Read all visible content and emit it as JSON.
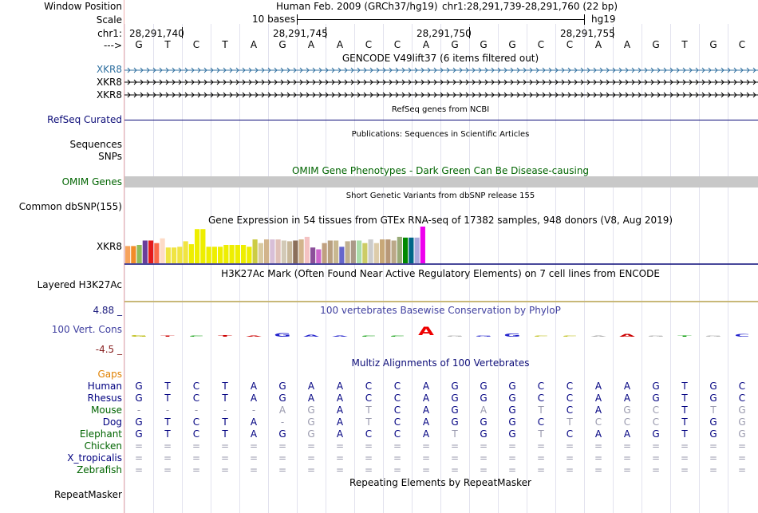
{
  "labels": {
    "window_position": "Window Position",
    "scale": "Scale",
    "chr": "chr1:",
    "arrow": "--->",
    "gencode_1": "XKR8",
    "gencode_2": "XKR8",
    "gencode_3": "XKR8",
    "refseq": "RefSeq Curated",
    "sequences": "Sequences",
    "snps": "SNPs",
    "omim": "OMIM Genes",
    "common_dbsnp": "Common dbSNP(155)",
    "gtex": "XKR8",
    "h3k27ac": "Layered H3K27Ac",
    "cons_max": "4.88 _",
    "cons": "100 Vert. Cons",
    "cons_min": "-4.5 _",
    "gaps": "Gaps",
    "repeatmasker": "RepeatMasker"
  },
  "header": {
    "assembly": "Human Feb. 2009 (GRCh37/hg19)",
    "position": "chr1:28,291,739-28,291,760 (22 bp)",
    "scale_text": "10 bases",
    "scale_db": "hg19",
    "ticks": [
      "28,291,740",
      "28,291,745",
      "28,291,750",
      "28,291,755"
    ]
  },
  "bases": [
    "G",
    "T",
    "C",
    "T",
    "A",
    "G",
    "A",
    "A",
    "C",
    "C",
    "A",
    "G",
    "G",
    "G",
    "C",
    "C",
    "A",
    "A",
    "G",
    "T",
    "G",
    "C"
  ],
  "titles": {
    "gencode": "GENCODE V49lift37 (6 items filtered out)",
    "refseq": "RefSeq genes from NCBI",
    "publications": "Publications: Sequences in Scientific Articles",
    "omim": "OMIM Gene Phenotypes - Dark Green Can Be Disease-causing",
    "snp155": "Short Genetic Variants from dbSNP release 155",
    "gtex": "Gene Expression in 54 tissues from GTEx RNA-seq of 17382 samples, 948 donors (V8, Aug 2019)",
    "h3k27ac": "H3K27Ac Mark (Often Found Near Active Regulatory Elements) on 7 cell lines from ENCODE",
    "phylop": "100 vertebrates Basewise Conservation by PhyloP",
    "multiz": "Multiz Alignments of 100 Vertebrates",
    "repeatmasker": "Repeating Elements by RepeatMasker"
  },
  "gtex_bars": [
    {
      "v": 0.47,
      "c": "#f7a35c"
    },
    {
      "v": 0.47,
      "c": "#f28c28"
    },
    {
      "v": 0.5,
      "c": "#8fbc5a"
    },
    {
      "v": 0.62,
      "c": "#6a3d9a"
    },
    {
      "v": 0.62,
      "c": "#e31a1c"
    },
    {
      "v": 0.55,
      "c": "#fb6a4a"
    },
    {
      "v": 0.68,
      "c": "#fddbc7"
    },
    {
      "v": 0.43,
      "c": "#f0e442"
    },
    {
      "v": 0.43,
      "c": "#f0e442"
    },
    {
      "v": 0.45,
      "c": "#f0e442"
    },
    {
      "v": 0.6,
      "c": "#f0e442"
    },
    {
      "v": 0.52,
      "c": "#eeee00"
    },
    {
      "v": 0.93,
      "c": "#eeee00"
    },
    {
      "v": 0.93,
      "c": "#eeee00"
    },
    {
      "v": 0.45,
      "c": "#eeee00"
    },
    {
      "v": 0.45,
      "c": "#eeee00"
    },
    {
      "v": 0.45,
      "c": "#eeee00"
    },
    {
      "v": 0.5,
      "c": "#eeee00"
    },
    {
      "v": 0.5,
      "c": "#eeee00"
    },
    {
      "v": 0.5,
      "c": "#eeee00"
    },
    {
      "v": 0.5,
      "c": "#eeee00"
    },
    {
      "v": 0.45,
      "c": "#eeee00"
    },
    {
      "v": 0.65,
      "c": "#cccc44"
    },
    {
      "v": 0.55,
      "c": "#d9c9a0"
    },
    {
      "v": 0.65,
      "c": "#d2b48c"
    },
    {
      "v": 0.65,
      "c": "#d8bfd8"
    },
    {
      "v": 0.65,
      "c": "#e0c0b8"
    },
    {
      "v": 0.62,
      "c": "#d2c9b6"
    },
    {
      "v": 0.6,
      "c": "#c8b89a"
    },
    {
      "v": 0.62,
      "c": "#8b6f5a"
    },
    {
      "v": 0.65,
      "c": "#d2b48c"
    },
    {
      "v": 0.72,
      "c": "#f4c2c2"
    },
    {
      "v": 0.43,
      "c": "#8b4f9a"
    },
    {
      "v": 0.38,
      "c": "#cc66cc"
    },
    {
      "v": 0.55,
      "c": "#c0a080"
    },
    {
      "v": 0.62,
      "c": "#b8a080"
    },
    {
      "v": 0.62,
      "c": "#c8b890"
    },
    {
      "v": 0.45,
      "c": "#6666cc"
    },
    {
      "v": 0.6,
      "c": "#c0b090"
    },
    {
      "v": 0.62,
      "c": "#aa9988"
    },
    {
      "v": 0.62,
      "c": "#aaddaa"
    },
    {
      "v": 0.55,
      "c": "#cccc66"
    },
    {
      "v": 0.65,
      "c": "#cccccc"
    },
    {
      "v": 0.55,
      "c": "#ddccaa"
    },
    {
      "v": 0.65,
      "c": "#c8a878"
    },
    {
      "v": 0.65,
      "c": "#b89878"
    },
    {
      "v": 0.62,
      "c": "#bba888"
    },
    {
      "v": 0.72,
      "c": "#99aa77"
    },
    {
      "v": 0.7,
      "c": "#008800"
    },
    {
      "v": 0.7,
      "c": "#006688"
    },
    {
      "v": 0.7,
      "c": "#aaaadd"
    },
    {
      "v": 1.0,
      "c": "#ee00ee"
    }
  ],
  "phylop_glyphs": [
    {
      "b": "G",
      "s": 0.3,
      "up": false,
      "c": "#b8b800"
    },
    {
      "b": "T",
      "s": 0.2,
      "up": false,
      "c": "#cc0000"
    },
    {
      "b": "C",
      "s": 0.2,
      "up": false,
      "c": "#009900"
    },
    {
      "b": "T",
      "s": 0.3,
      "up": false,
      "c": "#cc0000"
    },
    {
      "b": "A",
      "s": 0.15,
      "up": false,
      "c": "#cc0000"
    },
    {
      "b": "G",
      "s": 0.7,
      "up": false,
      "c": "#2222cc"
    },
    {
      "b": "A",
      "s": 0.4,
      "up": false,
      "c": "#2222cc"
    },
    {
      "b": "A",
      "s": 0.1,
      "up": false,
      "c": "#2222cc"
    },
    {
      "b": "C",
      "s": 0.1,
      "up": false,
      "c": "#009900"
    },
    {
      "b": "C",
      "s": 0.1,
      "up": false,
      "c": "#009900"
    },
    {
      "b": "A",
      "s": 1.0,
      "up": true,
      "c": "#ee0000"
    },
    {
      "b": "G",
      "s": 0.05,
      "up": false,
      "c": "#aaaaaa"
    },
    {
      "b": "G",
      "s": 0.2,
      "up": false,
      "c": "#2222cc"
    },
    {
      "b": "G",
      "s": 0.6,
      "up": false,
      "c": "#2222cc"
    },
    {
      "b": "C",
      "s": 0.1,
      "up": false,
      "c": "#b8b800"
    },
    {
      "b": "C",
      "s": 0.1,
      "up": false,
      "c": "#b8b800"
    },
    {
      "b": "A",
      "s": 0.05,
      "up": false,
      "c": "#aaaaaa"
    },
    {
      "b": "A",
      "s": 0.5,
      "up": false,
      "c": "#cc0000"
    },
    {
      "b": "G",
      "s": 0.05,
      "up": false,
      "c": "#aaaaaa"
    },
    {
      "b": "T",
      "s": 0.2,
      "up": false,
      "c": "#009900"
    },
    {
      "b": "G",
      "s": 0.05,
      "up": false,
      "c": "#aaaaaa"
    },
    {
      "b": "C",
      "s": 0.5,
      "up": false,
      "c": "#2222cc"
    }
  ],
  "species": [
    {
      "name": "Human",
      "color": "#000080",
      "bases": [
        "G",
        "T",
        "C",
        "T",
        "A",
        "G",
        "A",
        "A",
        "C",
        "C",
        "A",
        "G",
        "G",
        "G",
        "C",
        "C",
        "A",
        "A",
        "G",
        "T",
        "G",
        "C"
      ],
      "light": []
    },
    {
      "name": "Rhesus",
      "color": "#000080",
      "bases": [
        "G",
        "T",
        "C",
        "T",
        "A",
        "G",
        "A",
        "A",
        "C",
        "C",
        "A",
        "G",
        "G",
        "G",
        "C",
        "C",
        "A",
        "A",
        "G",
        "T",
        "G",
        "C"
      ],
      "light": []
    },
    {
      "name": "Mouse",
      "color": "#006400",
      "bases": [
        "-",
        "-",
        "-",
        "-",
        "-",
        "A",
        "G",
        "A",
        "T",
        "C",
        "A",
        "G",
        "A",
        "G",
        "T",
        "C",
        "A",
        "G",
        "C",
        "T",
        "T",
        "G"
      ],
      "light": [
        0,
        1,
        2,
        3,
        4,
        5,
        6,
        8,
        12,
        14,
        17,
        18,
        20,
        21
      ]
    },
    {
      "name": "Dog",
      "color": "#000080",
      "bases": [
        "G",
        "T",
        "C",
        "T",
        "A",
        "-",
        "G",
        "A",
        "T",
        "C",
        "A",
        "G",
        "G",
        "G",
        "C",
        "T",
        "C",
        "C",
        "C",
        "T",
        "G",
        "G"
      ],
      "light": [
        5,
        6,
        8,
        15,
        16,
        17,
        18,
        21
      ]
    },
    {
      "name": "Elephant",
      "color": "#006400",
      "bases": [
        "G",
        "T",
        "C",
        "T",
        "A",
        "G",
        "G",
        "A",
        "C",
        "C",
        "A",
        "T",
        "G",
        "G",
        "T",
        "C",
        "A",
        "A",
        "G",
        "T",
        "G",
        "G"
      ],
      "light": [
        6,
        11,
        14,
        21
      ]
    },
    {
      "name": "Chicken",
      "color": "#006400",
      "bases": [
        "=",
        "=",
        "=",
        "=",
        "=",
        "=",
        "=",
        "=",
        "=",
        "=",
        "=",
        "=",
        "=",
        "=",
        "=",
        "=",
        "=",
        "=",
        "=",
        "=",
        "=",
        "="
      ],
      "light": "all"
    },
    {
      "name": "X_tropicalis",
      "color": "#000080",
      "bases": [
        "=",
        "=",
        "=",
        "=",
        "=",
        "=",
        "=",
        "=",
        "=",
        "=",
        "=",
        "=",
        "=",
        "=",
        "=",
        "=",
        "=",
        "=",
        "=",
        "=",
        "=",
        "="
      ],
      "light": "all"
    },
    {
      "name": "Zebrafish",
      "color": "#006400",
      "bases": [
        "=",
        "=",
        "=",
        "=",
        "=",
        "=",
        "=",
        "=",
        "=",
        "=",
        "=",
        "=",
        "=",
        "=",
        "=",
        "=",
        "=",
        "=",
        "=",
        "=",
        "=",
        "="
      ],
      "light": "all"
    }
  ],
  "colors": {
    "track_title": "#000000",
    "gencode": "#3070a0",
    "gene_line": "#000000",
    "refseq": "#0c0c78",
    "omim": "#006400",
    "omim_bar": "#c8c8c8",
    "phylop_title": "#4040a0",
    "cons_max": "#202080",
    "cons_min": "#882020",
    "gaps": "#e08000",
    "multiz_title": "#0c0c78"
  }
}
